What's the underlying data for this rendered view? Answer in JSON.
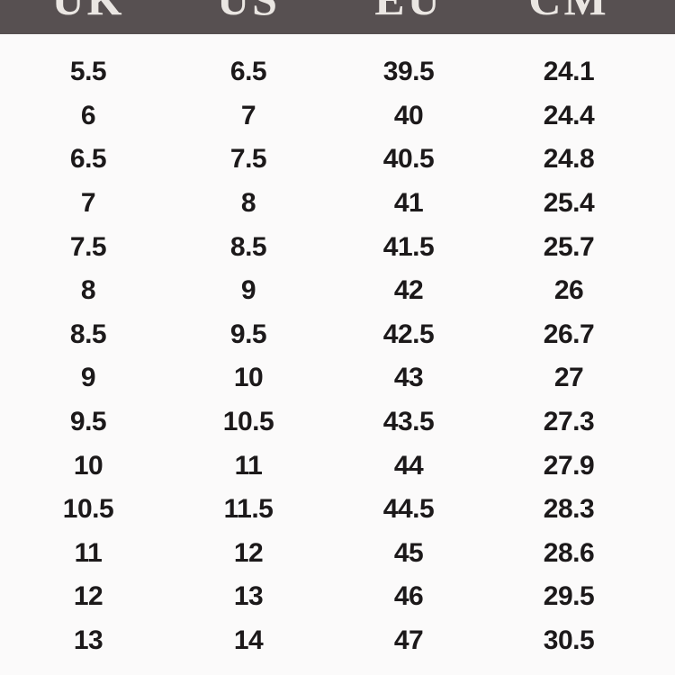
{
  "colors": {
    "page-bg": "#fbfafa",
    "header-bg": "#575051",
    "header-text": "#eae6e2",
    "body-text": "#1c191a"
  },
  "chart_data": {
    "type": "table",
    "title": "",
    "columns": [
      "UK",
      "US",
      "EU",
      "CM"
    ],
    "rows": [
      [
        "5.5",
        "6.5",
        "39.5",
        "24.1"
      ],
      [
        "6",
        "7",
        "40",
        "24.4"
      ],
      [
        "6.5",
        "7.5",
        "40.5",
        "24.8"
      ],
      [
        "7",
        "8",
        "41",
        "25.4"
      ],
      [
        "7.5",
        "8.5",
        "41.5",
        "25.7"
      ],
      [
        "8",
        "9",
        "42",
        "26"
      ],
      [
        "8.5",
        "9.5",
        "42.5",
        "26.7"
      ],
      [
        "9",
        "10",
        "43",
        "27"
      ],
      [
        "9.5",
        "10.5",
        "43.5",
        "27.3"
      ],
      [
        "10",
        "11",
        "44",
        "27.9"
      ],
      [
        "10.5",
        "11.5",
        "44.5",
        "28.3"
      ],
      [
        "11",
        "12",
        "45",
        "28.6"
      ],
      [
        "12",
        "13",
        "46",
        "29.5"
      ],
      [
        "13",
        "14",
        "47",
        "30.5"
      ]
    ]
  }
}
